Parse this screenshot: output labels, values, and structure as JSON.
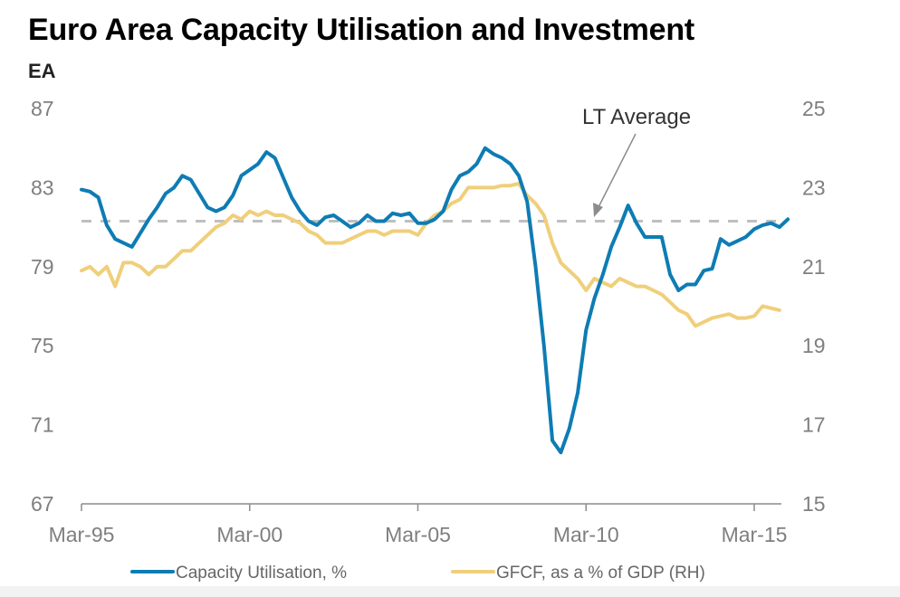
{
  "chart_data": {
    "type": "line",
    "title": "Euro Area Capacity Utilisation and Investment",
    "subtitle": "EA",
    "xlabel": "",
    "ylabel": "",
    "x_ticks": [
      "Mar-95",
      "Mar-00",
      "Mar-05",
      "Mar-10",
      "Mar-15"
    ],
    "x_start": "Mar-95",
    "frequency": "quarterly",
    "y_left": {
      "ticks": [
        87,
        83,
        79,
        75,
        71,
        67
      ],
      "range": [
        67,
        87
      ]
    },
    "y_right": {
      "ticks": [
        25,
        23,
        21,
        19,
        17,
        15
      ],
      "range": [
        15,
        25
      ]
    },
    "grid": false,
    "legend_position": "bottom",
    "reference_line": {
      "label": "LT Average",
      "axis": "left",
      "value": 81.3,
      "style": "dashed",
      "color": "#bfbfbf"
    },
    "annotation": {
      "text": "LT Average",
      "points_to": "reference_line"
    },
    "series": [
      {
        "name": "Capacity Utilisation, %",
        "axis": "left",
        "color": "#0e7cb4",
        "values": [
          82.9,
          82.8,
          82.5,
          81.1,
          80.4,
          80.2,
          80.0,
          80.7,
          81.4,
          82.0,
          82.7,
          83.0,
          83.6,
          83.4,
          82.7,
          82.0,
          81.8,
          82.0,
          82.6,
          83.6,
          83.9,
          84.2,
          84.8,
          84.5,
          83.5,
          82.5,
          81.8,
          81.3,
          81.1,
          81.5,
          81.6,
          81.3,
          81.0,
          81.2,
          81.6,
          81.3,
          81.3,
          81.7,
          81.6,
          81.7,
          81.2,
          81.2,
          81.4,
          81.8,
          82.9,
          83.6,
          83.8,
          84.2,
          85.0,
          84.7,
          84.5,
          84.2,
          83.6,
          82.3,
          79.0,
          75.0,
          70.2,
          69.6,
          70.8,
          72.6,
          75.8,
          77.4,
          78.6,
          80.0,
          81.0,
          82.1,
          81.2,
          80.5,
          80.5,
          80.5,
          78.6,
          77.8,
          78.1,
          78.1,
          78.8,
          78.9,
          80.4,
          80.1,
          80.3,
          80.5,
          80.9,
          81.1,
          81.2,
          81.0,
          81.4
        ]
      },
      {
        "name": "GFCF, as a % of GDP (RH)",
        "axis": "right",
        "color": "#f0cf7b",
        "values": [
          20.9,
          21.0,
          20.8,
          21.0,
          20.5,
          21.1,
          21.1,
          21.0,
          20.8,
          21.0,
          21.0,
          21.2,
          21.4,
          21.4,
          21.6,
          21.8,
          22.0,
          22.1,
          22.3,
          22.2,
          22.4,
          22.3,
          22.4,
          22.3,
          22.3,
          22.2,
          22.1,
          21.9,
          21.8,
          21.6,
          21.6,
          21.6,
          21.7,
          21.8,
          21.9,
          21.9,
          21.8,
          21.9,
          21.9,
          21.9,
          21.8,
          22.1,
          22.3,
          22.4,
          22.6,
          22.7,
          23.0,
          23.0,
          23.0,
          23.0,
          23.05,
          23.05,
          23.1,
          22.8,
          22.6,
          22.3,
          21.6,
          21.1,
          20.9,
          20.7,
          20.4,
          20.7,
          20.6,
          20.5,
          20.7,
          20.6,
          20.5,
          20.5,
          20.4,
          20.3,
          20.1,
          19.9,
          19.8,
          19.5,
          19.6,
          19.7,
          19.75,
          19.8,
          19.7,
          19.7,
          19.75,
          20.0,
          19.95,
          19.9
        ]
      }
    ]
  },
  "legend": {
    "items": [
      {
        "label": "Capacity Utilisation, %",
        "color": "#0e7cb4"
      },
      {
        "label": "GFCF, as a % of GDP (RH)",
        "color": "#f0cf7b"
      }
    ]
  }
}
